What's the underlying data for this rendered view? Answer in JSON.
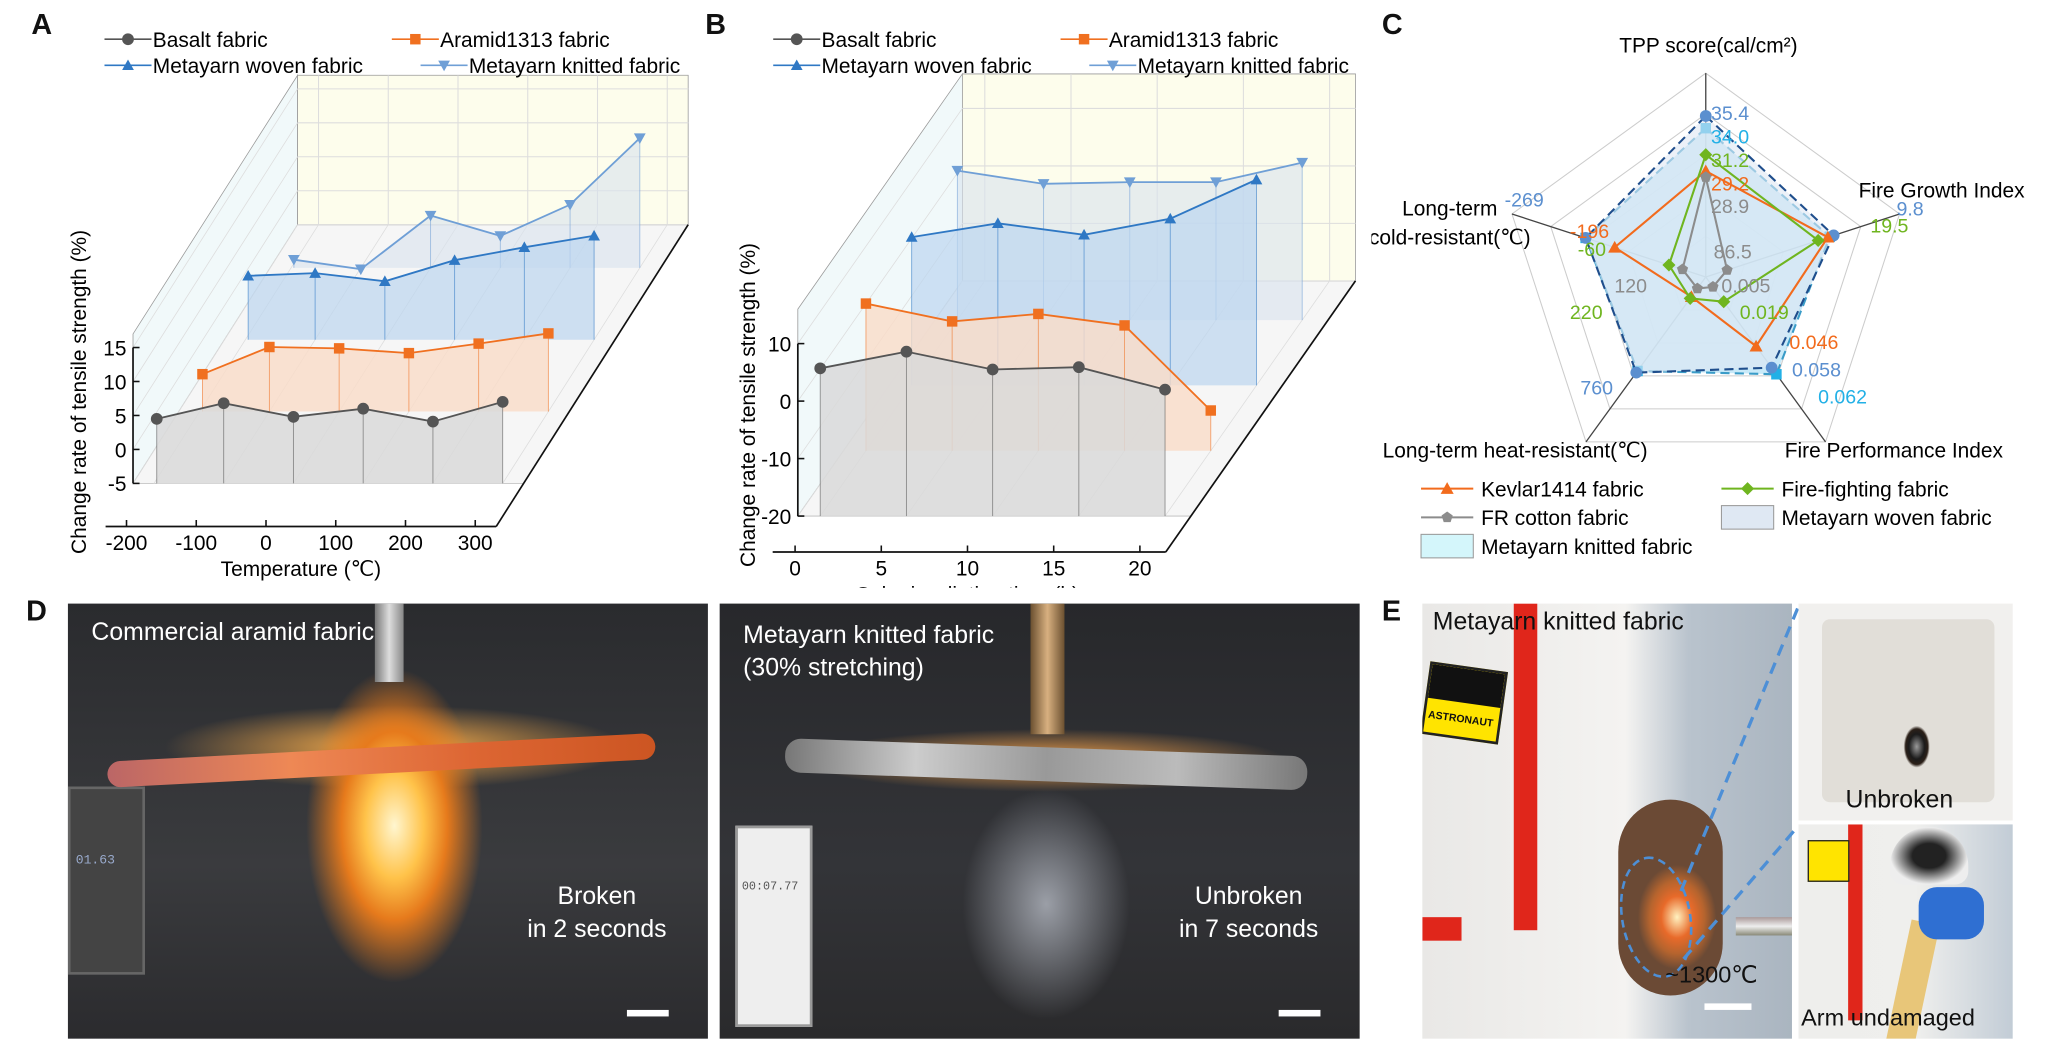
{
  "panel_letters": {
    "a": "A",
    "b": "B",
    "c": "C",
    "d": "D",
    "e": "E"
  },
  "colors": {
    "basalt": "#555555",
    "aramid": "#f07020",
    "woven": "#2f78c4",
    "knitted": "#6f9fd6",
    "kevlar": "#f26b1d",
    "firefighting": "#6fb51f",
    "frcotton": "#8c8c8c",
    "woven_radar": "#5b8fcf",
    "knitted_radar": "#22b0e6"
  },
  "chart_data": [
    {
      "id": "A",
      "type": "line",
      "style": "3d-ribbon",
      "xlabel": "Temperature (℃)",
      "ylabel": "Change rate of tensile strength (%)",
      "xticks": [
        "-200",
        "-100",
        "0",
        "100",
        "200",
        "300"
      ],
      "yticks": [
        "-5",
        "0",
        "5",
        "10",
        "15"
      ],
      "xlim": [
        -200,
        300
      ],
      "ylim": [
        -5,
        15
      ],
      "grid": true,
      "legend_position": "top",
      "x": [
        -196,
        -100,
        0,
        100,
        200,
        300
      ],
      "series": [
        {
          "name": "Basalt fabric",
          "marker": "circle",
          "values": [
            4.5,
            6.8,
            4.8,
            6.0,
            4.1,
            7.0
          ]
        },
        {
          "name": "Aramid1313 fabric",
          "marker": "square",
          "values": [
            0.5,
            4.5,
            4.3,
            3.6,
            5.0,
            6.5
          ]
        },
        {
          "name": "Metayarn woven fabric",
          "marker": "triangle-up",
          "values": [
            4.4,
            4.8,
            3.6,
            6.7,
            8.6,
            10.3
          ]
        },
        {
          "name": "Metayarn knitted fabric",
          "marker": "triangle-down",
          "values": [
            -3.8,
            -5.2,
            2.7,
            -0.3,
            4.3,
            14.1
          ]
        }
      ]
    },
    {
      "id": "B",
      "type": "line",
      "style": "3d-ribbon",
      "xlabel": "Solar irradiation time (h)",
      "ylabel": "Change rate of tensile strength (%)",
      "xticks": [
        "0",
        "5",
        "10",
        "15",
        "20"
      ],
      "yticks": [
        "-20",
        "-10",
        "0",
        "10"
      ],
      "xlim": [
        0,
        20
      ],
      "ylim": [
        -20,
        10
      ],
      "grid": true,
      "legend_position": "top",
      "x": [
        0,
        5,
        10,
        15,
        20
      ],
      "series": [
        {
          "name": "Basalt fabric",
          "marker": "circle",
          "values": [
            5.7,
            8.6,
            5.5,
            5.9,
            2.0
          ]
        },
        {
          "name": "Aramid1313 fabric",
          "marker": "square",
          "values": [
            5.6,
            2.5,
            3.8,
            1.8,
            -13.0
          ]
        },
        {
          "name": "Metayarn woven fabric",
          "marker": "triangle-up",
          "values": [
            5.8,
            8.2,
            6.2,
            9.0,
            15.8
          ]
        },
        {
          "name": "Metayarn knitted fabric",
          "marker": "triangle-down",
          "values": [
            6.0,
            3.7,
            4.0,
            4.0,
            7.4
          ]
        }
      ]
    },
    {
      "id": "C",
      "type": "radar",
      "axes": [
        "TPP score(cal/cm²)",
        "Fire Growth Index",
        "Fire Performance Index",
        "Long-term heat-resistant(℃)",
        "Long-term cold-resistant(℃)"
      ],
      "legend_position": "bottom",
      "series": [
        {
          "name": "Metayarn woven fabric",
          "kind": "area",
          "labels": [
            "35.4",
            "9.8",
            "0.058",
            "760",
            "-269"
          ],
          "radial_level": [
            0.79,
            0.66,
            0.55,
            0.58,
            0.62
          ]
        },
        {
          "name": "Metayarn knitted fabric",
          "kind": "area",
          "labels": [
            "34.0",
            null,
            "0.062",
            null,
            null
          ],
          "radial_level": [
            0.73,
            0.64,
            0.59,
            0.57,
            0.62
          ]
        },
        {
          "name": "Kevlar1414 fabric",
          "kind": "line",
          "labels": [
            "29.2",
            null,
            "0.046",
            null,
            "-196"
          ],
          "radial_level": [
            0.52,
            0.63,
            0.42,
            0.12,
            0.47
          ]
        },
        {
          "name": "Fire-fighting fabric",
          "kind": "line",
          "labels": [
            "31.2",
            "19.5",
            "0.019",
            "220",
            "-60"
          ],
          "radial_level": [
            0.6,
            0.58,
            0.15,
            0.13,
            0.19
          ]
        },
        {
          "name": "FR cotton fabric",
          "kind": "line",
          "labels": [
            "28.9",
            "86.5",
            "0.005",
            "120",
            null
          ],
          "radial_level": [
            0.49,
            0.11,
            0.06,
            0.07,
            0.12
          ]
        }
      ]
    }
  ],
  "panel_d": {
    "left": {
      "caption": "Commercial aramid fabric",
      "result_line1": "Broken",
      "result_line2": "in 2 seconds",
      "timer": "01.63"
    },
    "right": {
      "caption_line1": "Metayarn knitted fabric",
      "caption_line2": "(30% stretching)",
      "result_line1": "Unbroken",
      "result_line2": "in 7 seconds",
      "timer": "00:07.77"
    }
  },
  "panel_e": {
    "main_caption": "Metayarn knitted fabric",
    "temperature": "~1300℃",
    "patch_text": "ASTRONAUT",
    "top_caption": "Unbroken",
    "bottom_caption": "Arm undamaged"
  }
}
